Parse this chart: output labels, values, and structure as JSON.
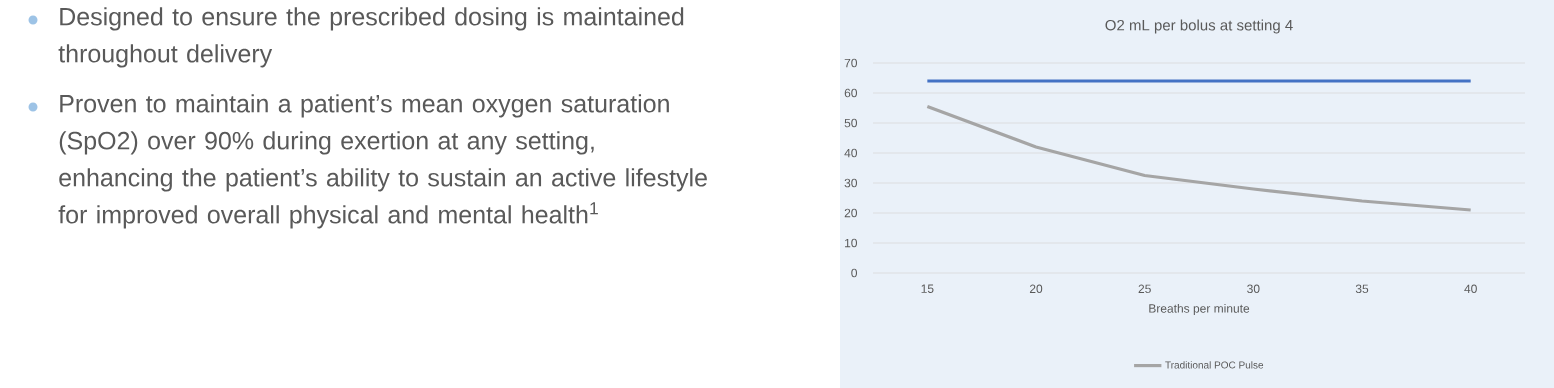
{
  "chart_data": {
    "type": "line",
    "title": "O2 mL per bolus at setting 4",
    "xlabel": "Breaths per minute",
    "categories": [
      "15",
      "20",
      "25",
      "30",
      "35",
      "40"
    ],
    "series": [
      {
        "color": "#4472c4",
        "values": [
          64,
          64,
          64,
          64,
          64,
          64
        ]
      },
      {
        "name": "Traditional POC Pulse",
        "color": "#a5a5a5",
        "values": [
          55.5,
          42,
          32.5,
          28,
          24,
          21
        ]
      }
    ],
    "ylim": [
      0,
      70
    ],
    "yticks": [
      0,
      10,
      20,
      30,
      40,
      50,
      60,
      70
    ],
    "grid": "y",
    "legend": "bottom",
    "marker": "none",
    "line_style": "solid",
    "annotations": [
      "Designed to ensure the prescribed dosing is maintained throughout delivery",
      "Proven to maintain a patient’s mean oxygen saturation (SpO2) over 90% during exertion at any setting, enhancing the patient’s ability to sustain an active lifestyle for improved overall physical and mental health$^{1}$"
    ]
  }
}
